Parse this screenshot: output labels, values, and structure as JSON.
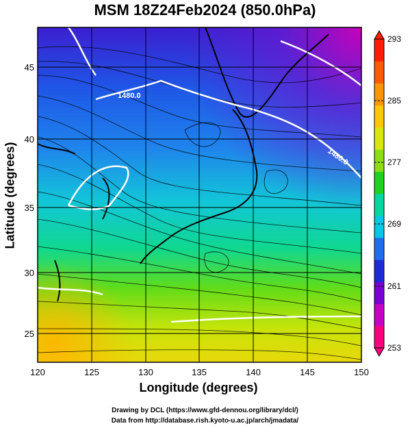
{
  "title": "MSM 18Z24Feb2024 (850.0hPa)",
  "map": {
    "xlabel": "Longitude (degrees)",
    "ylabel": "Latitude  (degrees)",
    "lon_ticks": [
      "120",
      "125",
      "130",
      "135",
      "140",
      "145",
      "150"
    ],
    "lat_ticks": [
      "45",
      "40",
      "35",
      "30",
      "25"
    ],
    "lon_range": [
      120,
      150
    ],
    "lat_range": [
      22.4,
      47.6
    ],
    "contour_label": "1480.0",
    "grid": true
  },
  "colorbar": {
    "ticks": [
      "293",
      "285",
      "277",
      "269",
      "261",
      "253"
    ],
    "range": [
      253,
      293
    ],
    "colors": [
      "#ff007f",
      "#c800c8",
      "#7a00d8",
      "#1c2ad8",
      "#1f6ef0",
      "#00c8e6",
      "#00d8a0",
      "#1ed21e",
      "#8cde14",
      "#d8e60a",
      "#ffc800",
      "#ff9600",
      "#ff5a00",
      "#ff1e00"
    ]
  },
  "credits": {
    "line1": "Drawing by DCL (https://www.gfd-dennou.org/library/dcl/)",
    "line2": "Data from http://database.rish.kyoto-u.ac.jp/arch/jmadata/"
  }
}
